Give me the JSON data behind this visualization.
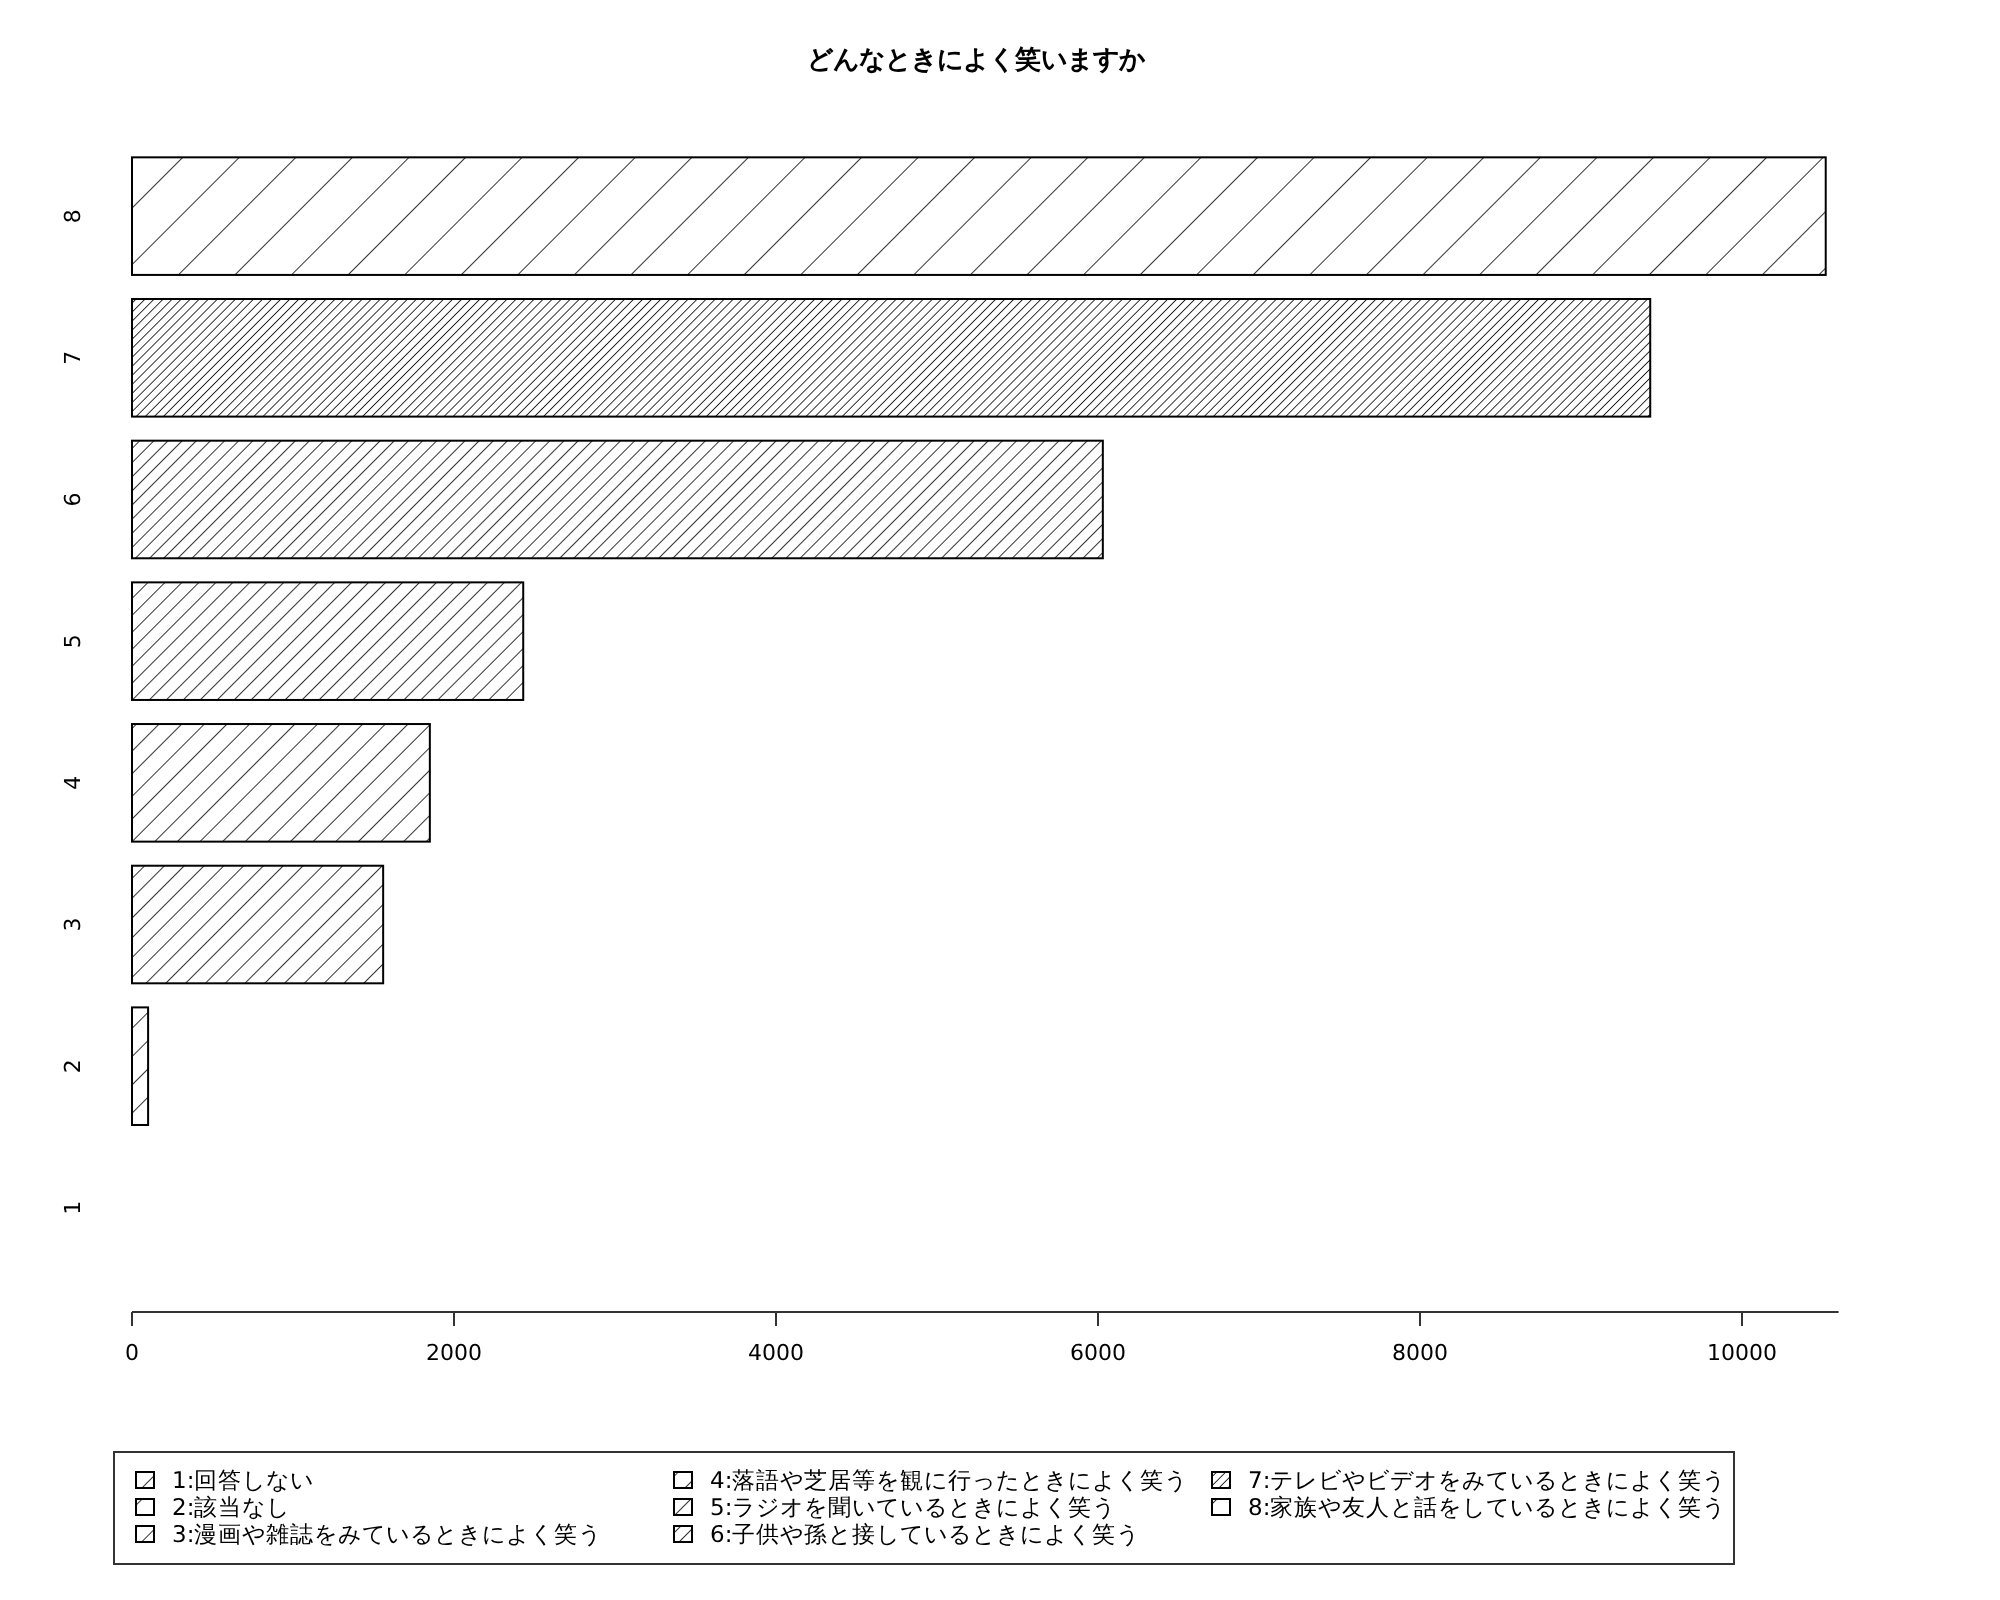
{
  "chart_data": {
    "type": "bar",
    "orientation": "horizontal",
    "title": "どんなときによく笑いますか",
    "categories": [
      "8",
      "7",
      "6",
      "5",
      "4",
      "3",
      "2",
      "1"
    ],
    "series": [
      {
        "name": "1:回答しない",
        "color": "#000000",
        "values": [
          null,
          null,
          null,
          null,
          null,
          null,
          null,
          0
        ]
      },
      {
        "name": "2:該当なし",
        "color": "#000000",
        "values": [
          null,
          null,
          null,
          null,
          null,
          null,
          100,
          null
        ]
      },
      {
        "name": "3:漫画や雑誌をみているときによく笑う",
        "color": "#000000",
        "values": [
          null,
          null,
          null,
          null,
          null,
          1560,
          null,
          null
        ]
      },
      {
        "name": "4:落語や芝居等を観に行ったときによく笑う",
        "color": "#000000",
        "values": [
          null,
          null,
          null,
          null,
          1850,
          null,
          null,
          null
        ]
      },
      {
        "name": "5:ラジオを聞いているときによく笑う",
        "color": "#000000",
        "values": [
          null,
          null,
          null,
          2430,
          null,
          null,
          null,
          null
        ]
      },
      {
        "name": "6:子供や孫と接しているときによく笑う",
        "color": "#000000",
        "values": [
          null,
          null,
          6030,
          null,
          null,
          null,
          null,
          null
        ]
      },
      {
        "name": "7:テレビやビデオをみているときによく笑う",
        "color": "#000000",
        "values": [
          null,
          9430,
          null,
          null,
          null,
          null,
          null,
          null
        ]
      },
      {
        "name": "8:家族や友人と話をしているときによく笑う",
        "color": "#000000",
        "values": [
          10520,
          null,
          null,
          null,
          null,
          null,
          null,
          null
        ]
      }
    ],
    "xlim": [
      0,
      10600
    ],
    "xticks": [
      0,
      2000,
      4000,
      6000,
      8000,
      10000
    ],
    "legend": "bottom"
  }
}
